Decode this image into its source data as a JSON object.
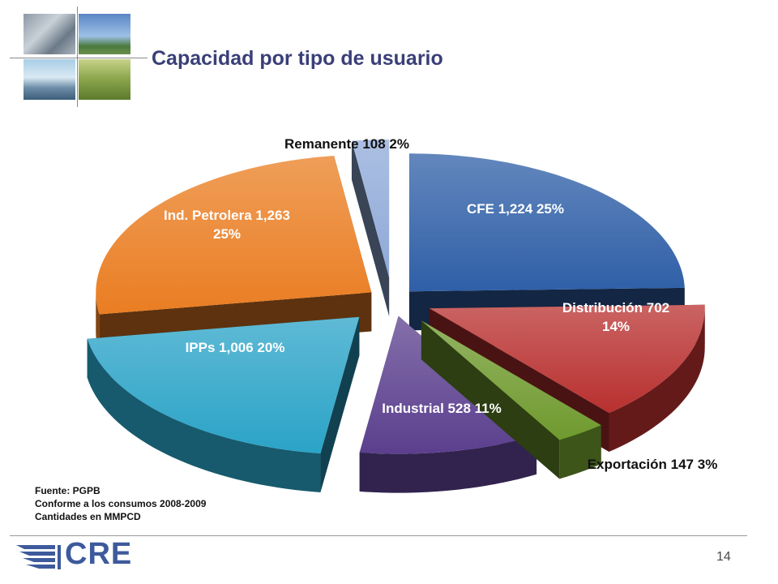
{
  "header": {
    "title": "Capacidad por tipo de usuario",
    "logo_text": "CRE",
    "page_number": "14"
  },
  "notes": [
    "Fuente: PGPB",
    "Conforme a los consumos 2008-2009",
    "Cantidades en MMPCD"
  ],
  "chart_data": {
    "type": "pie",
    "title": "Capacidad por tipo de usuario",
    "unit": "MMPCD",
    "slices": [
      {
        "name": "CFE",
        "value": 1224,
        "percent": "25%",
        "label_line1": "CFE  1,224  25%",
        "label_line2": "",
        "color": "#2f5fa7"
      },
      {
        "name": "Distribución",
        "value": 702,
        "percent": "14%",
        "label_line1": "Distribución  702",
        "label_line2": "14%",
        "color": "#b8302f"
      },
      {
        "name": "Exportación",
        "value": 147,
        "percent": "3%",
        "label_line1": "Exportación  147  3%",
        "label_line2": "",
        "color": "#6f9a2e"
      },
      {
        "name": "Industrial",
        "value": 528,
        "percent": "11%",
        "label_line1": "Industrial  528  11%",
        "label_line2": "",
        "color": "#5b3f8e"
      },
      {
        "name": "IPPs",
        "value": 1006,
        "percent": "20%",
        "label_line1": "IPPs  1,006  20%",
        "label_line2": "",
        "color": "#2aa3c7"
      },
      {
        "name": "Ind. Petrolera",
        "value": 1263,
        "percent": "25%",
        "label_line1": "Ind. Petrolera  1,263",
        "label_line2": "25%",
        "color": "#ea7d22"
      },
      {
        "name": "Remanente",
        "value": 108,
        "percent": "2%",
        "label_line1": "Remanente  108  2%",
        "label_line2": "",
        "color": "#8fa9d8"
      }
    ]
  }
}
